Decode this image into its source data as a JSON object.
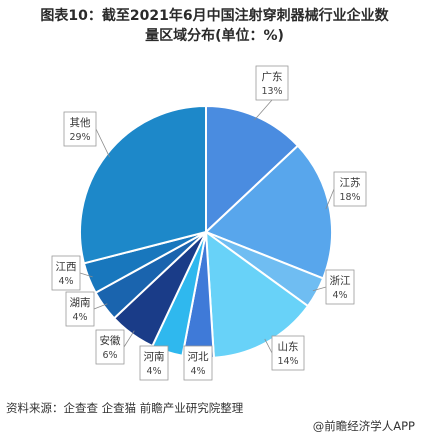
{
  "header": {
    "title_line1": "图表10：截至2021年6月中国注射穿刺器械行业企业数",
    "title_line2": "量区域分布(单位：%)"
  },
  "footer": {
    "source": "资料来源：企查查 企查猫 前瞻产业研究院整理",
    "brand": "@前瞻经济学人APP"
  },
  "chart_data": {
    "type": "pie",
    "title": "图表10：截至2021年6月中国注射穿刺器械行业企业数量区域分布(单位：%)",
    "unit": "%",
    "start_angle": "12 o'clock",
    "direction": "clockwise",
    "slices": [
      {
        "label": "广东",
        "value": 13,
        "value_label": "13%",
        "color": "#4a8ce0"
      },
      {
        "label": "江苏",
        "value": 18,
        "value_label": "18%",
        "color": "#58a6ec"
      },
      {
        "label": "浙江",
        "value": 4,
        "value_label": "4%",
        "color": "#6fbdf2"
      },
      {
        "label": "山东",
        "value": 14,
        "value_label": "14%",
        "color": "#68d2f8"
      },
      {
        "label": "河北",
        "value": 4,
        "value_label": "4%",
        "color": "#3f7ad8"
      },
      {
        "label": "河南",
        "value": 4,
        "value_label": "4%",
        "color": "#2fb8ee"
      },
      {
        "label": "安徽",
        "value": 6,
        "value_label": "6%",
        "color": "#1a3c88"
      },
      {
        "label": "湖南",
        "value": 4,
        "value_label": "4%",
        "color": "#1a64ae"
      },
      {
        "label": "江西",
        "value": 4,
        "value_label": "4%",
        "color": "#1877bd"
      },
      {
        "label": "其他",
        "value": 29,
        "value_label": "29%",
        "color": "#1d88c9"
      }
    ]
  }
}
